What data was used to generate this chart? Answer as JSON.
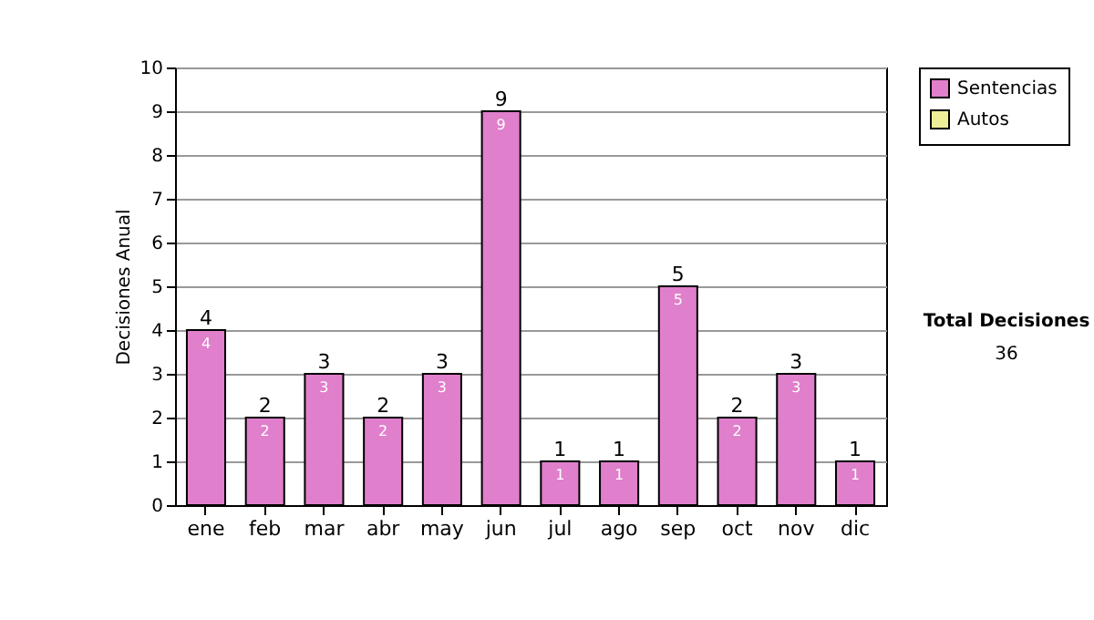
{
  "chart_data": {
    "type": "bar",
    "stacked": true,
    "ylabel": "Decisiones Anual",
    "categories": [
      "ene",
      "feb",
      "mar",
      "abr",
      "may",
      "jun",
      "jul",
      "ago",
      "sep",
      "oct",
      "nov",
      "dic"
    ],
    "series": [
      {
        "name": "Sentencias",
        "color": "#e07fcb",
        "values": [
          4,
          2,
          3,
          2,
          3,
          9,
          1,
          1,
          5,
          2,
          3,
          1
        ],
        "value_labels": [
          "4",
          "2",
          "3",
          "2",
          "3",
          "9",
          "1",
          "1",
          "5",
          "2",
          "3",
          "1"
        ]
      },
      {
        "name": "Autos",
        "color": "#eeee99",
        "values": [
          0,
          0,
          0,
          0,
          0,
          0,
          0,
          0,
          0,
          0,
          0,
          0
        ]
      }
    ],
    "totals": [
      "4",
      "2",
      "3",
      "2",
      "3",
      "9",
      "1",
      "1",
      "5",
      "2",
      "3",
      "1"
    ],
    "ylim": [
      0,
      10
    ],
    "yticks": [
      0,
      1,
      2,
      3,
      4,
      5,
      6,
      7,
      8,
      9,
      10
    ],
    "grid": "y",
    "legend": "right",
    "annotations": [
      "Total Decisiones",
      "36"
    ]
  }
}
